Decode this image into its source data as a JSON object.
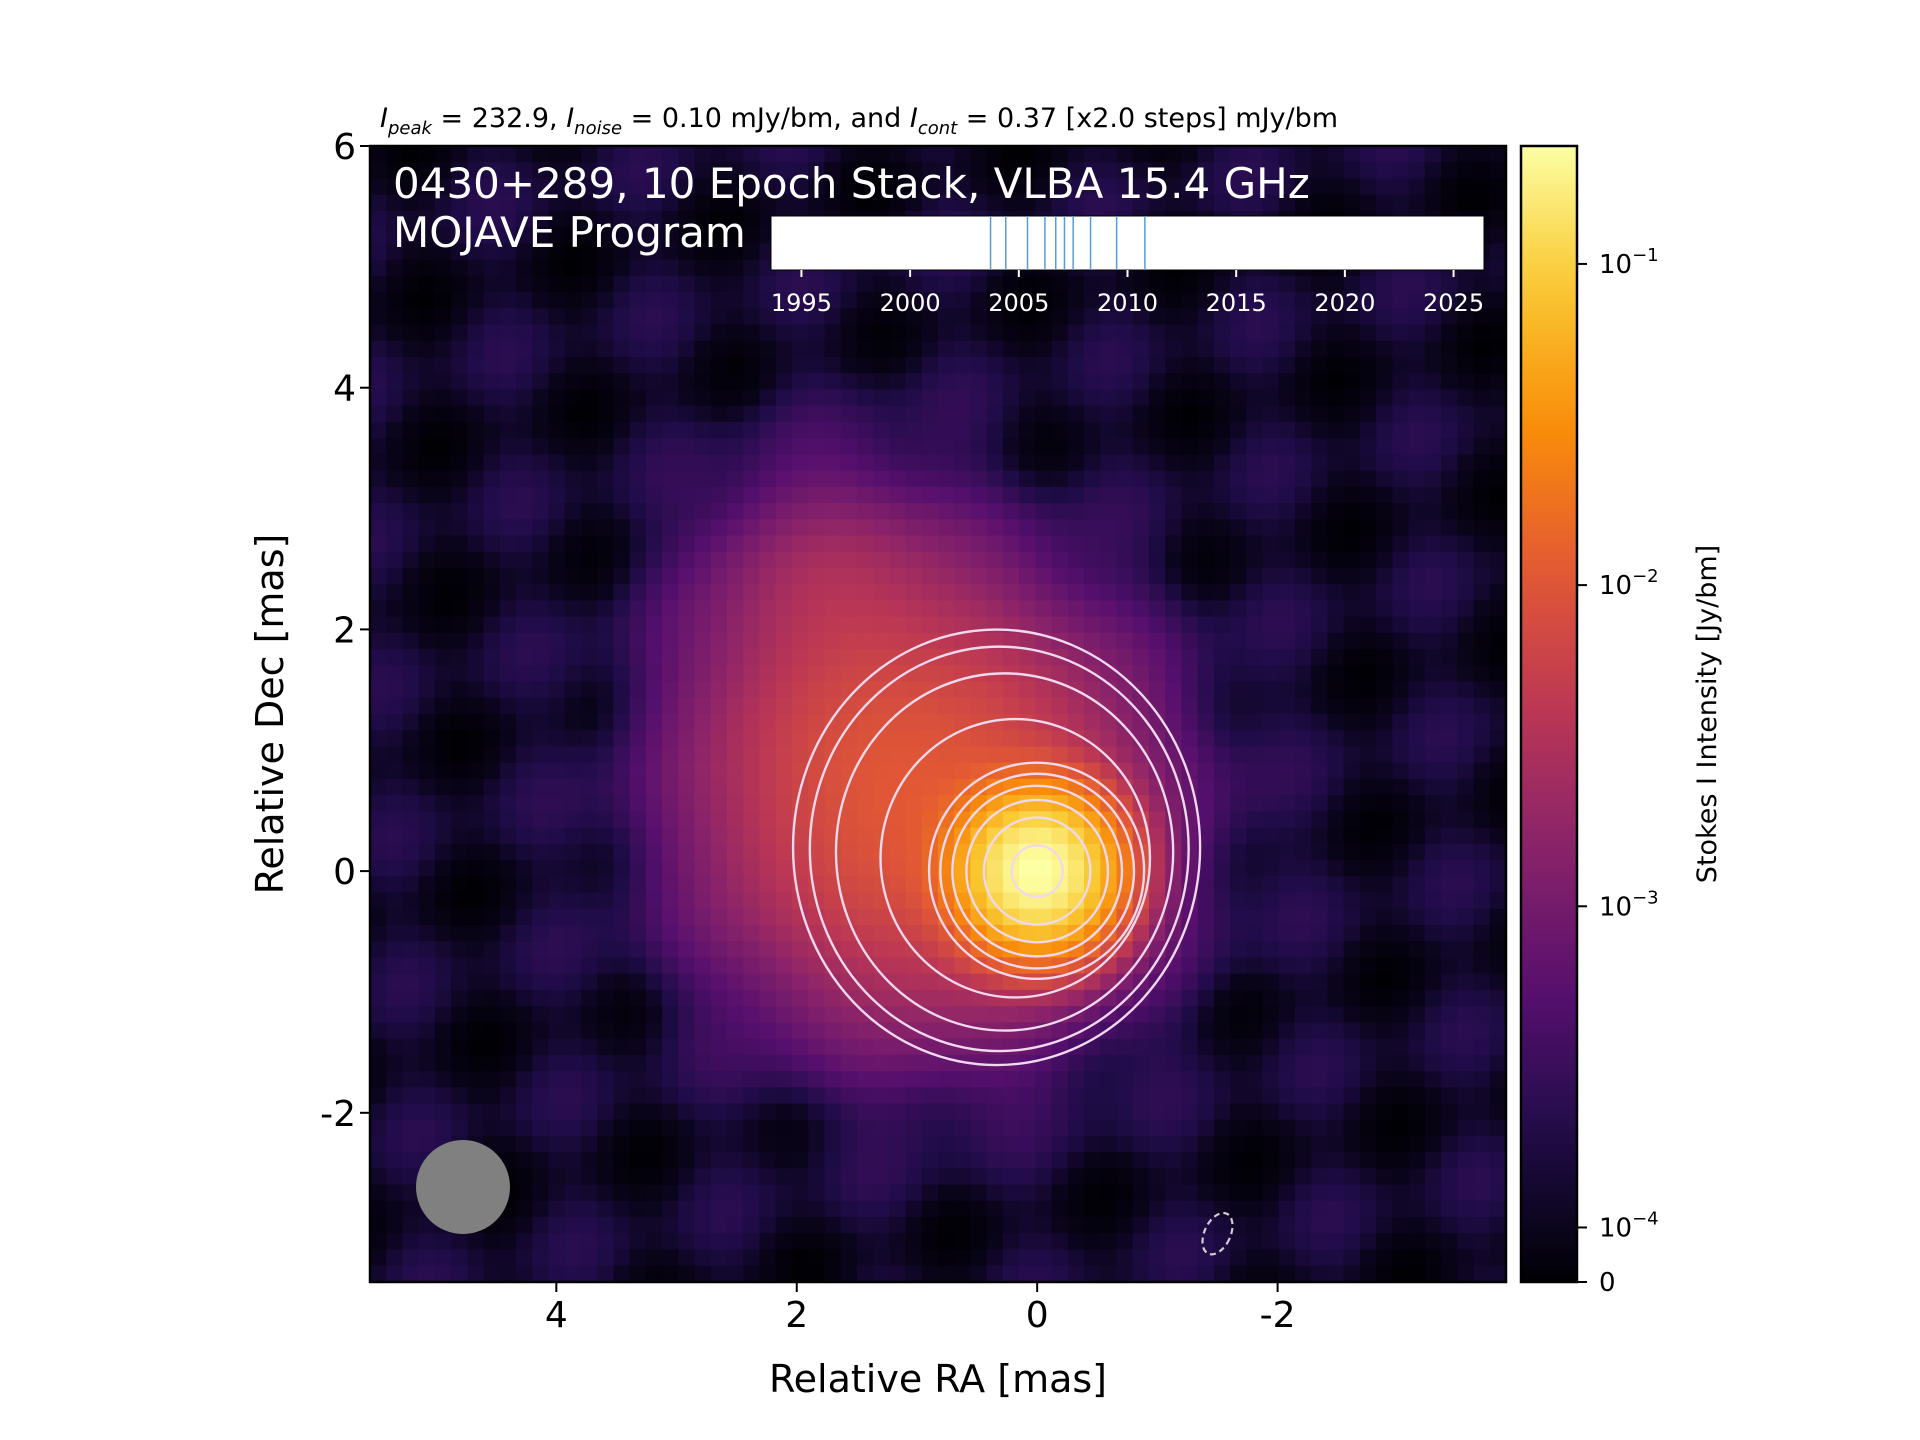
{
  "chart_data": {
    "type": "heatmap",
    "header": {
      "peak_label": "I",
      "peak_sub": "peak",
      "peak_text": " = 232.9, ",
      "noise_label": "I",
      "noise_sub": "noise",
      "noise_text": " = 0.10 mJy/bm, and ",
      "cont_label": "I",
      "cont_sub": "cont",
      "cont_text": " = 0.37 [x2.0 steps] mJy/bm"
    },
    "title_line1": "0430+289, 10 Epoch Stack, VLBA 15.4 GHz",
    "title_line2": "MOJAVE Program",
    "xlabel": "Relative RA [mas]",
    "ylabel": "Relative Dec [mas]",
    "xlim": [
      5.55,
      -3.9
    ],
    "ylim": [
      -3.4,
      6.0
    ],
    "x_ticks": [
      4,
      2,
      0,
      -2
    ],
    "x_tick_labels": [
      "4",
      "2",
      "0",
      "-2"
    ],
    "y_ticks": [
      6,
      4,
      2,
      0,
      -2
    ],
    "y_tick_labels": [
      "6",
      "4",
      "2",
      "0",
      "-2"
    ],
    "colormap": "inferno",
    "colorbar": {
      "label": "Stokes I Intensity [Jy/bm]",
      "scale": "log",
      "min": 0,
      "max": 0.2329,
      "ticks": [
        {
          "value": 0.1,
          "base": "10",
          "exp": "−1"
        },
        {
          "value": 0.01,
          "base": "10",
          "exp": "−2"
        },
        {
          "value": 0.001,
          "base": "10",
          "exp": "−3"
        },
        {
          "value": 0.0001,
          "base": "10",
          "exp": "−4"
        },
        {
          "value": 0,
          "base": "0",
          "exp": ""
        }
      ]
    },
    "peak_jy_per_beam": 0.2329,
    "noise_mjy_per_beam": 0.1,
    "base_contour_mjy_per_beam": 0.37,
    "contour_step_factor": 2.0,
    "contour_levels_mjy_per_beam": [
      0.37,
      0.74,
      1.48,
      2.96,
      5.92,
      11.84,
      23.68,
      47.36,
      94.72,
      189.44
    ],
    "negative_contour_mjy_per_beam": -0.37,
    "core_position_mas": [
      0,
      0
    ],
    "beam": {
      "major_mas": 0.78,
      "minor_mas": 0.78
    },
    "epoch_timeline": {
      "ticks": [
        1995,
        2000,
        2005,
        2010,
        2015,
        2020,
        2025
      ],
      "tick_labels": [
        "1995",
        "2000",
        "2005",
        "2010",
        "2015",
        "2020",
        "2025"
      ],
      "range": [
        1993.6,
        2026.4
      ],
      "epochs": [
        2003.7,
        2004.4,
        2005.4,
        2006.2,
        2006.7,
        2007.1,
        2007.5,
        2008.3,
        2009.5,
        2010.8
      ]
    }
  },
  "colors": {
    "contour": "#f0d8ee",
    "negative_contour": "#cfcfcf",
    "epoch_line": "#5b9bd5",
    "beam": "#808080",
    "text_on_map": "#ffffff"
  }
}
